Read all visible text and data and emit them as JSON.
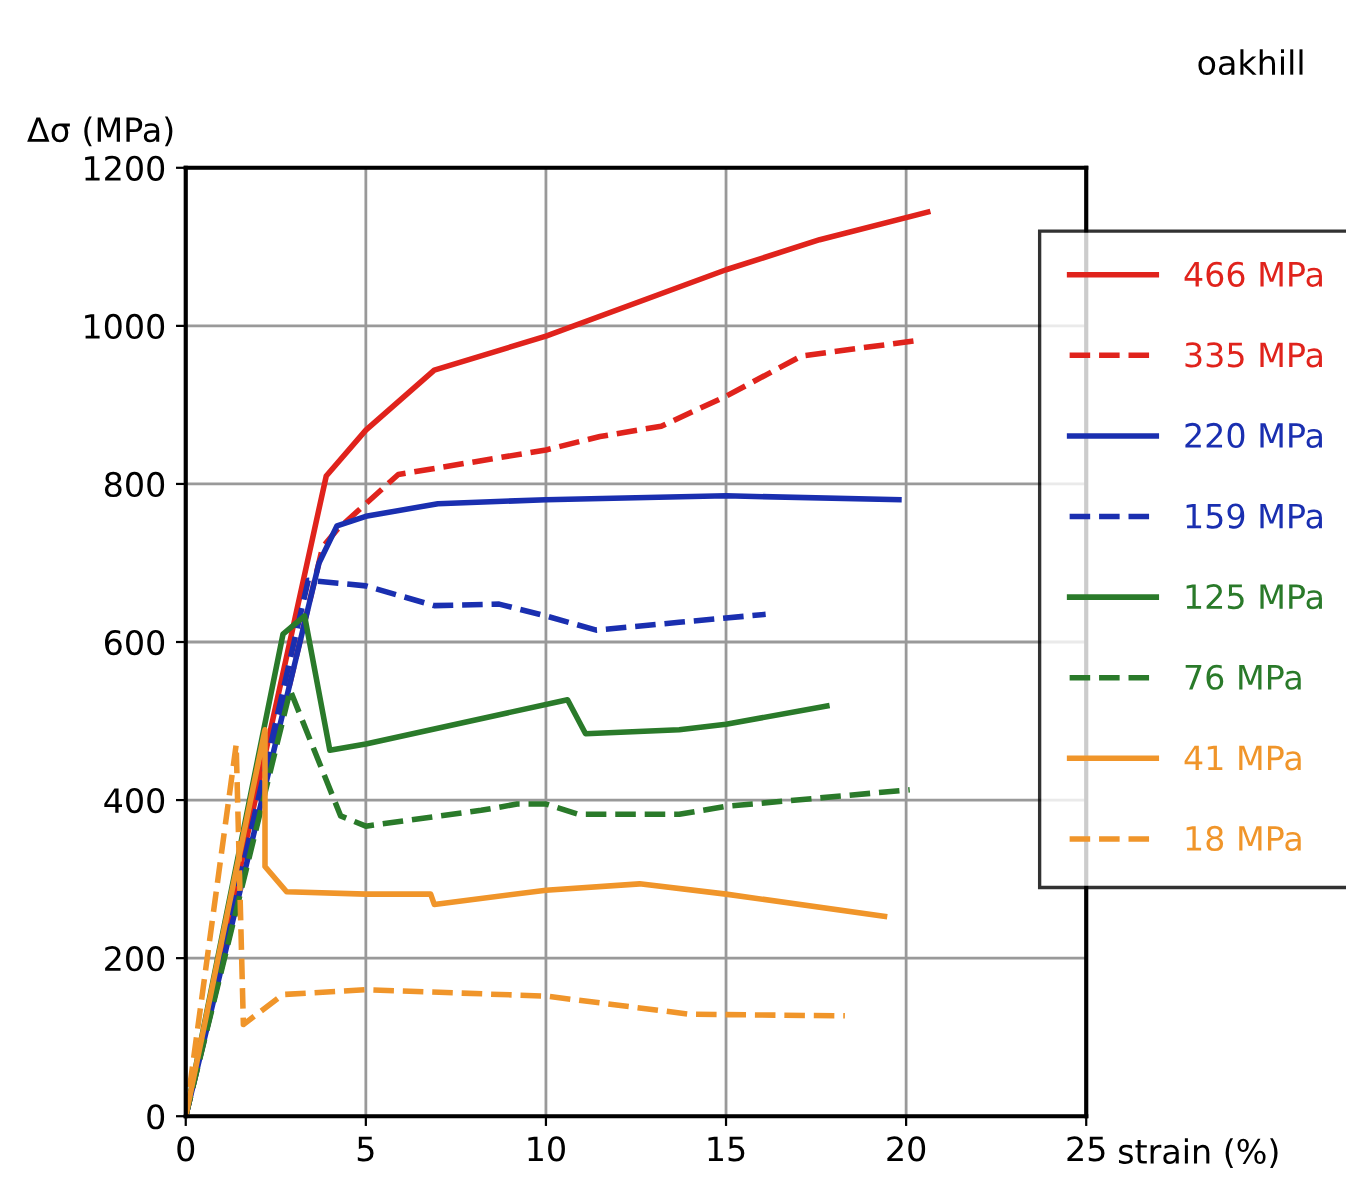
{
  "chart_data": {
    "type": "line",
    "xlabel": "strain (%)",
    "ylabel": "Δσ (MPa)",
    "annotations": [
      "oakhill"
    ],
    "xlim": [
      0,
      25
    ],
    "ylim": [
      0,
      1200
    ],
    "xticks": [
      0,
      5,
      10,
      15,
      20,
      25
    ],
    "yticks": [
      0,
      200,
      400,
      600,
      800,
      1000,
      1200
    ],
    "grid": true,
    "legend": "right",
    "marker": "none",
    "series": [
      {
        "name": "466 MPa",
        "color": "#e0231c",
        "line_style": "solid",
        "x": [
          0,
          3.9,
          5,
          6.9,
          10,
          15,
          17.6,
          20.6
        ],
        "values": [
          0,
          810,
          868,
          944,
          987,
          1071,
          1109,
          1144
        ]
      },
      {
        "name": "335 MPa",
        "color": "#e0231c",
        "line_style": "dashed",
        "x": [
          0,
          3.8,
          4.2,
          5.9,
          10,
          11.5,
          13.2,
          15,
          17.1,
          20.4
        ],
        "values": [
          0,
          720,
          742,
          812,
          843,
          860,
          873,
          911,
          962,
          982
        ]
      },
      {
        "name": "220 MPa",
        "color": "#1a2fb0",
        "line_style": "solid",
        "x": [
          0,
          3.7,
          4.2,
          5,
          7,
          10,
          15,
          19.8
        ],
        "values": [
          0,
          700,
          747,
          759,
          775,
          780,
          785,
          780
        ]
      },
      {
        "name": "159 MPa",
        "color": "#1a2fb0",
        "line_style": "dashed",
        "x": [
          0,
          3.4,
          5,
          6.9,
          8.7,
          10,
          11.4,
          13.7,
          16.1
        ],
        "values": [
          0,
          678,
          671,
          646,
          648,
          633,
          615,
          625,
          635
        ]
      },
      {
        "name": "125 MPa",
        "color": "#2a7a2a",
        "line_style": "solid",
        "x": [
          0,
          2.7,
          3.3,
          4,
          5,
          10.6,
          11.1,
          13.7,
          15,
          17.8
        ],
        "values": [
          0,
          610,
          633,
          463,
          471,
          527,
          484,
          489,
          496,
          519
        ]
      },
      {
        "name": "76 MPa",
        "color": "#2a7a2a",
        "line_style": "dashed",
        "x": [
          0,
          2.9,
          4.3,
          5,
          8.2,
          9.2,
          10,
          10.9,
          13.7,
          15,
          20.1
        ],
        "values": [
          0,
          539,
          380,
          367,
          387,
          395,
          395,
          382,
          382,
          392,
          413
        ]
      },
      {
        "name": "41 MPa",
        "color": "#f0952a",
        "line_style": "solid",
        "x": [
          0,
          2.2,
          2.2,
          2.8,
          5,
          6.8,
          6.9,
          10,
          12.6,
          15,
          19.4
        ],
        "values": [
          0,
          489,
          316,
          284,
          281,
          281,
          268,
          286,
          294,
          281,
          253
        ]
      },
      {
        "name": "18 MPa",
        "color": "#f0952a",
        "line_style": "dashed",
        "x": [
          0,
          1.4,
          1.6,
          2.7,
          5,
          10,
          14,
          18.3
        ],
        "values": [
          0,
          470,
          116,
          154,
          160,
          152,
          129,
          127
        ]
      }
    ]
  }
}
